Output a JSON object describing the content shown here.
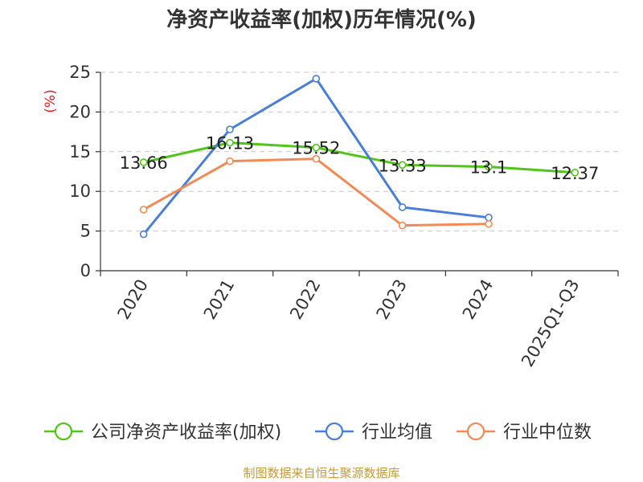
{
  "chart_data": {
    "type": "line",
    "title": "净资产收益率(加权)历年情况(%)",
    "ylabel": "(%)",
    "xlabel": "",
    "categories": [
      "2020",
      "2021",
      "2022",
      "2023",
      "2024",
      "2025Q1-Q3"
    ],
    "ylim": [
      0,
      25
    ],
    "yticks": [
      0,
      5,
      10,
      15,
      20,
      25
    ],
    "grid": true,
    "legend_position": "bottom",
    "series": [
      {
        "name": "公司净资产收益率(加权)",
        "color": "#52c41a",
        "values": [
          13.66,
          16.13,
          15.52,
          13.33,
          13.1,
          12.37
        ],
        "labels": [
          "13.66",
          "16.13",
          "15.52",
          "13.33",
          "13.1",
          "12.37"
        ]
      },
      {
        "name": "行业均值",
        "color": "#4a7fd6",
        "values": [
          4.6,
          17.8,
          24.2,
          8.0,
          6.7,
          null
        ]
      },
      {
        "name": "行业中位数",
        "color": "#f08b57",
        "values": [
          7.7,
          13.8,
          14.1,
          5.7,
          5.9,
          null
        ]
      }
    ]
  },
  "footer": {
    "source": "制图数据来自恒生聚源数据库"
  }
}
